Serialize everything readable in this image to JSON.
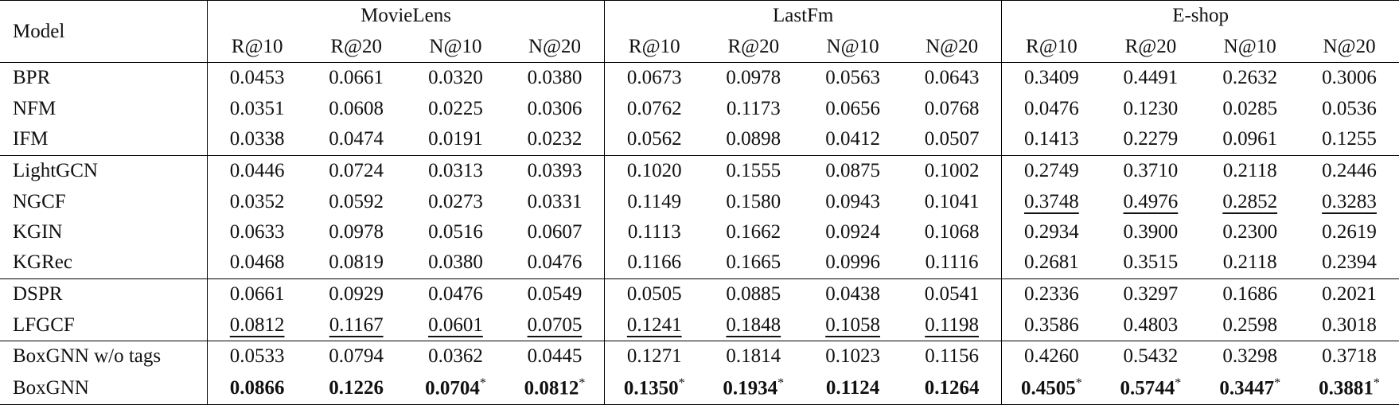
{
  "table": {
    "header": {
      "model": "Model",
      "datasets": [
        "MovieLens",
        "LastFm",
        "E-shop"
      ],
      "metrics": [
        "R@10",
        "R@20",
        "N@10",
        "N@20"
      ]
    },
    "row_groups": [
      {
        "rows": [
          {
            "model": "BPR",
            "cells": [
              "0.0453",
              "0.0661",
              "0.0320",
              "0.0380",
              "0.0673",
              "0.0978",
              "0.0563",
              "0.0643",
              "0.3409",
              "0.4491",
              "0.2632",
              "0.3006"
            ]
          },
          {
            "model": "NFM",
            "cells": [
              "0.0351",
              "0.0608",
              "0.0225",
              "0.0306",
              "0.0762",
              "0.1173",
              "0.0656",
              "0.0768",
              "0.0476",
              "0.1230",
              "0.0285",
              "0.0536"
            ]
          },
          {
            "model": "IFM",
            "cells": [
              "0.0338",
              "0.0474",
              "0.0191",
              "0.0232",
              "0.0562",
              "0.0898",
              "0.0412",
              "0.0507",
              "0.1413",
              "0.2279",
              "0.0961",
              "0.1255"
            ]
          }
        ]
      },
      {
        "rows": [
          {
            "model": "LightGCN",
            "cells": [
              "0.0446",
              "0.0724",
              "0.0313",
              "0.0393",
              "0.1020",
              "0.1555",
              "0.0875",
              "0.1002",
              "0.2749",
              "0.3710",
              "0.2118",
              "0.2446"
            ]
          },
          {
            "model": "NGCF",
            "cells": [
              "0.0352",
              "0.0592",
              "0.0273",
              "0.0331",
              "0.1149",
              "0.1580",
              "0.0943",
              "0.1041",
              "0.3748",
              "0.4976",
              "0.2852",
              "0.3283"
            ],
            "underline": [
              8,
              9,
              10,
              11
            ]
          },
          {
            "model": "KGIN",
            "cells": [
              "0.0633",
              "0.0978",
              "0.0516",
              "0.0607",
              "0.1113",
              "0.1662",
              "0.0924",
              "0.1068",
              "0.2934",
              "0.3900",
              "0.2300",
              "0.2619"
            ]
          },
          {
            "model": "KGRec",
            "cells": [
              "0.0468",
              "0.0819",
              "0.0380",
              "0.0476",
              "0.1166",
              "0.1665",
              "0.0996",
              "0.1116",
              "0.2681",
              "0.3515",
              "0.2118",
              "0.2394"
            ]
          }
        ]
      },
      {
        "rows": [
          {
            "model": "DSPR",
            "cells": [
              "0.0661",
              "0.0929",
              "0.0476",
              "0.0549",
              "0.0505",
              "0.0885",
              "0.0438",
              "0.0541",
              "0.2336",
              "0.3297",
              "0.1686",
              "0.2021"
            ]
          },
          {
            "model": "LFGCF",
            "cells": [
              "0.0812",
              "0.1167",
              "0.0601",
              "0.0705",
              "0.1241",
              "0.1848",
              "0.1058",
              "0.1198",
              "0.3586",
              "0.4803",
              "0.2598",
              "0.3018"
            ],
            "underline": [
              0,
              1,
              2,
              3,
              4,
              5,
              6,
              7
            ]
          }
        ]
      },
      {
        "rows": [
          {
            "model": "BoxGNN w/o tags",
            "cells": [
              "0.0533",
              "0.0794",
              "0.0362",
              "0.0445",
              "0.1271",
              "0.1814",
              "0.1023",
              "0.1156",
              "0.4260",
              "0.5432",
              "0.3298",
              "0.3718"
            ]
          },
          {
            "model": "BoxGNN",
            "bold": true,
            "cells": [
              "0.0866",
              "0.1226",
              {
                "text": "0.0704",
                "sup": "*"
              },
              {
                "text": "0.0812",
                "sup": "*"
              },
              {
                "text": "0.1350",
                "sup": "*"
              },
              {
                "text": "0.1934",
                "sup": "*"
              },
              "0.1124",
              "0.1264",
              {
                "text": "0.4505",
                "sup": "*"
              },
              {
                "text": "0.5744",
                "sup": "*"
              },
              {
                "text": "0.3447",
                "sup": "*"
              },
              {
                "text": "0.3881",
                "sup": "*"
              }
            ]
          }
        ]
      }
    ]
  }
}
